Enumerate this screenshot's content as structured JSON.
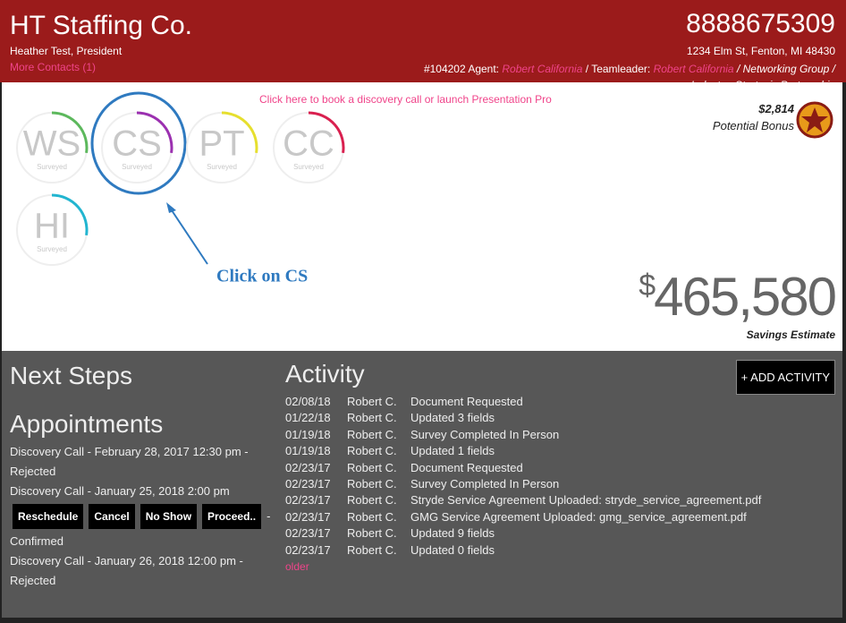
{
  "header": {
    "company": "HT Staffing Co.",
    "contact": "Heather Test, President",
    "more_contacts": "More Contacts (1)",
    "phone": "8888675309",
    "address": "1234 Elm St, Fenton, MI 48430",
    "details": [
      {
        "text": "#104202 Agent: ",
        "italic": false,
        "link": false
      },
      {
        "text": "Robert California",
        "italic": true,
        "link": true
      },
      {
        "text": " / Teamleader: ",
        "italic": false,
        "link": false
      },
      {
        "text": "Robert California",
        "italic": true,
        "link": true
      },
      {
        "text": " / Networking Group / Industry: Strategic Partnership",
        "italic": true,
        "link": false
      }
    ]
  },
  "banner": "Click here to book a discovery call or launch Presentation Pro",
  "surveys": [
    {
      "code": "WS",
      "status": "Surveyed",
      "color": "#5cb85c"
    },
    {
      "code": "CS",
      "status": "Surveyed",
      "color": "#9b30b0"
    },
    {
      "code": "PT",
      "status": "Surveyed",
      "color": "#e6df2e"
    },
    {
      "code": "CC",
      "status": "Surveyed",
      "color": "#d9204f"
    },
    {
      "code": "HI",
      "status": "Surveyed",
      "color": "#22b5d0"
    }
  ],
  "annotation": "Click on CS",
  "bonus": {
    "amount": "$2,814",
    "label": "Potential Bonus"
  },
  "savings": {
    "symbol": "$",
    "amount": "465,580",
    "label": "Savings Estimate"
  },
  "next_steps": {
    "title": "Next Steps",
    "appointments_title": "Appointments",
    "appointments": [
      {
        "text": "Discovery Call - February 28, 2017 12:30 pm -",
        "status": "Rejected",
        "buttons": []
      },
      {
        "text": "Discovery Call - January 25, 2018 2:00 pm",
        "status": "Confirmed",
        "buttons": [
          "Reschedule",
          "Cancel",
          "No Show",
          "Proceed.."
        ],
        "separator": "-"
      },
      {
        "text": "Discovery Call - January 26, 2018 12:00 pm -",
        "status": "Rejected",
        "buttons": []
      }
    ]
  },
  "activity": {
    "title": "Activity",
    "add_button": "+ ADD ACTIVITY",
    "rows": [
      [
        "02/08/18",
        "Robert C.",
        "Document Requested"
      ],
      [
        "01/22/18",
        "Robert C.",
        "Updated 3 fields"
      ],
      [
        "01/19/18",
        "Robert C.",
        "Survey Completed In Person"
      ],
      [
        "01/19/18",
        "Robert C.",
        "Updated 1 fields"
      ],
      [
        "02/23/17",
        "Robert C.",
        "Document Requested"
      ],
      [
        "02/23/17",
        "Robert C.",
        "Survey Completed In Person"
      ],
      [
        "02/23/17",
        "Robert C.",
        "Stryde Service Agreement Uploaded: stryde_service_agreement.pdf"
      ],
      [
        "02/23/17",
        "Robert C.",
        "GMG Service Agreement Uploaded: gmg_service_agreement.pdf"
      ],
      [
        "02/23/17",
        "Robert C.",
        "Updated 9 fields"
      ],
      [
        "02/23/17",
        "Robert C.",
        "Updated 0 fields"
      ]
    ],
    "older": "older"
  }
}
